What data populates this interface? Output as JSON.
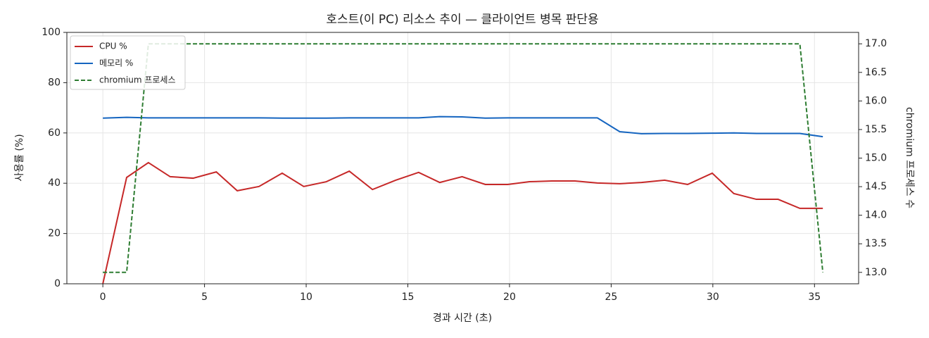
{
  "chart_data": {
    "type": "line",
    "title": "호스트(이 PC) 리소스 추이 — 클라이언트 병목 판단용",
    "xlabel": "경과 시간 (초)",
    "ylabel": "사용률 (%)",
    "y2label": "chromium 프로세스 수",
    "x": [
      0,
      1.17,
      2.24,
      3.31,
      4.44,
      5.58,
      6.61,
      7.68,
      8.82,
      9.88,
      10.99,
      12.12,
      13.26,
      14.4,
      15.53,
      16.57,
      17.67,
      18.81,
      19.91,
      20.98,
      22.08,
      23.22,
      24.32,
      25.42,
      26.49,
      27.63,
      28.76,
      29.97,
      31.03,
      32.14,
      33.21,
      34.28,
      35.41
    ],
    "series": [
      {
        "name": "CPU %",
        "color": "#c62828",
        "dash": false,
        "values": [
          0,
          42.3,
          48.2,
          42.6,
          42.0,
          44.5,
          37.0,
          38.7,
          44.0,
          38.7,
          40.6,
          44.8,
          37.5,
          41.2,
          44.3,
          40.3,
          42.6,
          39.5,
          39.5,
          40.6,
          40.9,
          40.9,
          40.1,
          39.8,
          40.3,
          41.2,
          39.5,
          44.0,
          35.9,
          33.6,
          33.6,
          30.0,
          30.0
        ]
      },
      {
        "name": "메모리 %",
        "color": "#1565c0",
        "dash": false,
        "values": [
          65.9,
          66.2,
          66.0,
          66.0,
          66.0,
          66.0,
          66.0,
          66.0,
          65.9,
          65.9,
          65.9,
          66.0,
          66.0,
          66.0,
          66.0,
          66.5,
          66.4,
          65.9,
          66.0,
          66.0,
          66.0,
          66.0,
          66.0,
          60.5,
          59.7,
          59.8,
          59.8,
          59.9,
          60.0,
          59.8,
          59.8,
          59.8,
          58.5
        ]
      },
      {
        "name": "chromium 프로세스",
        "color": "#2e7d32",
        "dash": true,
        "axis": "y2",
        "values": [
          13,
          13,
          17,
          17,
          17,
          17,
          17,
          17,
          17,
          17,
          17,
          17,
          17,
          17,
          17,
          17,
          17,
          17,
          17,
          17,
          17,
          17,
          17,
          17,
          17,
          17,
          17,
          17,
          17,
          17,
          17,
          17,
          13
        ]
      }
    ],
    "xlim": [
      -1.77,
      37.17
    ],
    "xticks": [
      0,
      5,
      10,
      15,
      20,
      25,
      30,
      35
    ],
    "ylim": [
      0,
      100
    ],
    "yticks": [
      0,
      20,
      40,
      60,
      80,
      100
    ],
    "y2lim": [
      12.8,
      17.2
    ],
    "y2ticks": [
      13.0,
      13.5,
      14.0,
      14.5,
      15.0,
      15.5,
      16.0,
      16.5,
      17.0
    ],
    "grid": true,
    "legend": "upper left"
  }
}
